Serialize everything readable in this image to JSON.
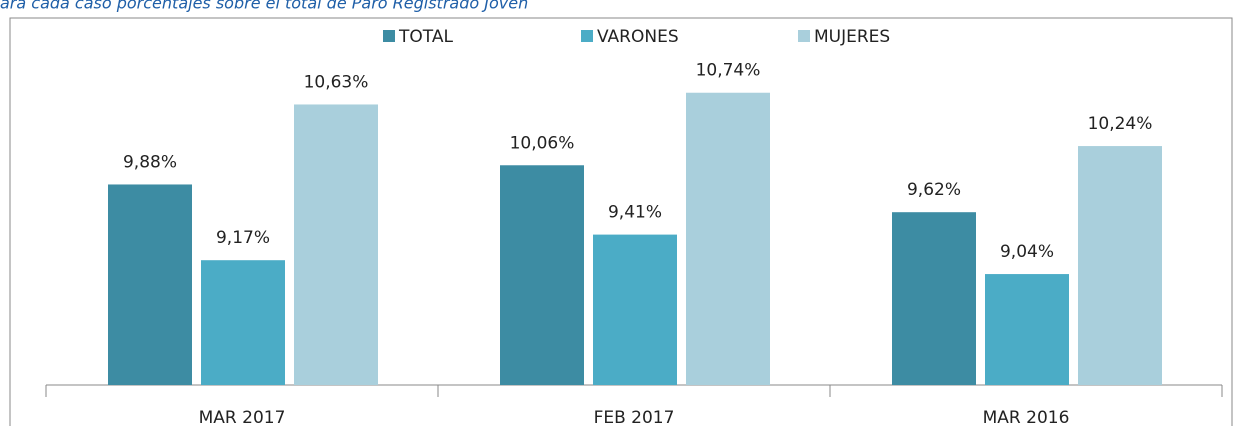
{
  "chart_data": {
    "type": "bar",
    "subtitle": "ara cada caso porcentajes sobre el total de Paro Registrado Joven",
    "categories": [
      "MAR 2017",
      "FEB 2017",
      "MAR 2016"
    ],
    "series": [
      {
        "name": "TOTAL",
        "color": "#3d8ca3",
        "values": [
          9.88,
          10.06,
          9.62
        ],
        "value_labels": [
          "9,88%",
          "10,06%",
          "9,62%"
        ]
      },
      {
        "name": "VARONES",
        "color": "#4bacc6",
        "values": [
          9.17,
          9.41,
          9.04
        ],
        "value_labels": [
          "9,17%",
          "9,41%",
          "9,04%"
        ]
      },
      {
        "name": "MUJERES",
        "color": "#a9cfdc",
        "values": [
          10.63,
          10.74,
          10.24
        ],
        "value_labels": [
          "10,63%",
          "10,74%",
          "10,24%"
        ]
      }
    ],
    "ylim": [
      8,
      11
    ],
    "legend": "top"
  }
}
